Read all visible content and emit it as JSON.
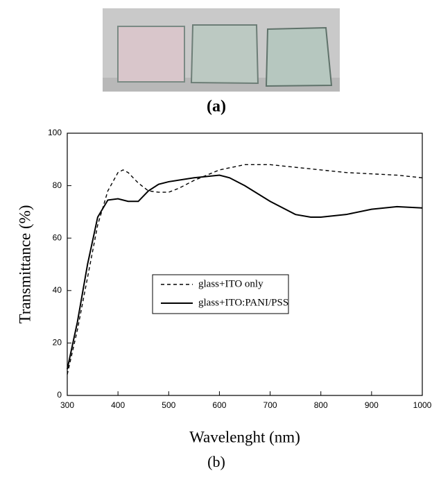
{
  "chart_data": {
    "type": "line",
    "photo_caption": "(a)",
    "caption": "(b)",
    "x_label": "Wavelenght (nm)",
    "y_label": "Transmittance (%)",
    "xlim": [
      300,
      1000
    ],
    "xticks": [
      300,
      400,
      500,
      600,
      700,
      800,
      900,
      1000
    ],
    "ylim": [
      0,
      100
    ],
    "yticks": [
      0,
      20,
      40,
      60,
      80,
      100
    ],
    "legend": "center",
    "series": [
      {
        "name": "glass+ITO only",
        "color": "#000000",
        "dash": true,
        "x": [
          300,
          320,
          340,
          360,
          380,
          400,
          410,
          420,
          440,
          460,
          480,
          500,
          520,
          550,
          600,
          650,
          700,
          750,
          800,
          850,
          900,
          950,
          1000
        ],
        "values": [
          8,
          25,
          45,
          65,
          78,
          85,
          86,
          85,
          81,
          78,
          77.5,
          77.5,
          79,
          82,
          86,
          88,
          88,
          87,
          86,
          85,
          84.5,
          84,
          83
        ]
      },
      {
        "name": "glass+ITO:PANI/PSS",
        "color": "#000000",
        "dash": false,
        "x": [
          300,
          320,
          340,
          360,
          380,
          400,
          420,
          440,
          460,
          480,
          500,
          550,
          600,
          620,
          650,
          700,
          750,
          780,
          800,
          850,
          900,
          950,
          1000
        ],
        "values": [
          10,
          28,
          50,
          68,
          74.5,
          75,
          74,
          74,
          78,
          80.5,
          81.5,
          83,
          84,
          83,
          80,
          74,
          69,
          68,
          68,
          69,
          71,
          72,
          71.5
        ]
      }
    ]
  }
}
